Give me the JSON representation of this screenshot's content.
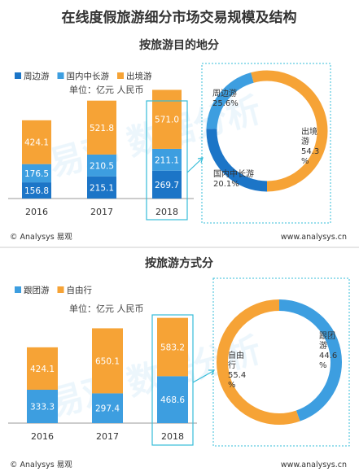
{
  "title": "在线度假旅游细分市场交易规模及结构",
  "footer": {
    "copyright": "© Analysys 易观",
    "url": "www.analysys.cn"
  },
  "watermark": "易观 数据分析",
  "colors": {
    "dark_blue": "#1C75C7",
    "light_blue": "#3D9EE0",
    "orange": "#F6A336",
    "highlight": "#35BCD8",
    "text": "#333333"
  },
  "chart_data": [
    {
      "type": "bar",
      "stacked": true,
      "title": "按旅游目的地分",
      "unit_label": "单位：亿元 人民币",
      "categories": [
        "2016",
        "2017",
        "2018"
      ],
      "highlight_category": "2018",
      "legend_position": "top-left",
      "series": [
        {
          "name": "周边游",
          "color": "#1C75C7",
          "values": [
            156.8,
            215.1,
            269.7
          ]
        },
        {
          "name": "国内中长游",
          "color": "#3D9EE0",
          "values": [
            176.5,
            210.5,
            211.1
          ]
        },
        {
          "name": "出境游",
          "color": "#F6A336",
          "values": [
            424.1,
            521.8,
            571.0
          ]
        }
      ],
      "value_labels": [
        [
          "156.8",
          "215.1",
          "269.7"
        ],
        [
          "176.5",
          "210.5",
          "211.1"
        ],
        [
          "424.1",
          "521.8",
          "571.0"
        ]
      ]
    },
    {
      "type": "pie",
      "donut": true,
      "slices": [
        {
          "name": "周边游",
          "value": 25.6,
          "label": "25.6%",
          "color": "#1C75C7"
        },
        {
          "name": "国内中长游",
          "value": 20.1,
          "label": "20.1%",
          "color": "#3D9EE0"
        },
        {
          "name": "出境游",
          "value": 54.3,
          "label": "54.3%",
          "color": "#F6A336"
        }
      ]
    },
    {
      "type": "bar",
      "stacked": true,
      "title": "按旅游方式分",
      "unit_label": "单位：亿元 人民币",
      "categories": [
        "2016",
        "2017",
        "2018"
      ],
      "highlight_category": "2018",
      "legend_position": "top-left",
      "series": [
        {
          "name": "跟团游",
          "color": "#3D9EE0",
          "values": [
            333.3,
            297.4,
            468.6
          ]
        },
        {
          "name": "自由行",
          "color": "#F6A336",
          "values": [
            424.1,
            650.1,
            583.2
          ]
        }
      ],
      "value_labels": [
        [
          "333.3",
          "297.4",
          "468.6"
        ],
        [
          "424.1",
          "650.1",
          "583.2"
        ]
      ]
    },
    {
      "type": "pie",
      "donut": true,
      "slices": [
        {
          "name": "跟团游",
          "value": 44.6,
          "label": "44.6%",
          "color": "#3D9EE0"
        },
        {
          "name": "自由行",
          "value": 55.4,
          "label": "55.4%",
          "color": "#F6A336"
        }
      ]
    }
  ]
}
